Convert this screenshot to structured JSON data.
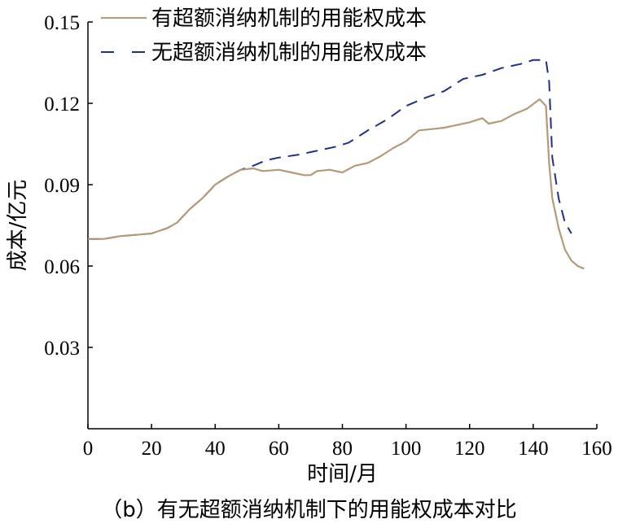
{
  "chart_data": {
    "type": "line",
    "title": "",
    "xlabel": "时间/月",
    "ylabel": "成本/亿元",
    "xlim": [
      0,
      160
    ],
    "ylim": [
      0,
      0.15
    ],
    "xticks": [
      0,
      20,
      40,
      60,
      80,
      100,
      120,
      140,
      160
    ],
    "xtick_labels": [
      "0",
      "20",
      "40",
      "60",
      "80",
      "100",
      "120",
      "140",
      "160"
    ],
    "yticks": [
      0.03,
      0.06,
      0.09,
      0.12,
      0.15
    ],
    "ytick_labels": [
      "0.03",
      "0.06",
      "0.09",
      "0.12",
      "0.15"
    ],
    "grid": false,
    "legend": "top-left",
    "series": [
      {
        "name": "有超额消纳机制的用能权成本",
        "color": "#b59a78",
        "style": "solid",
        "x": [
          0,
          5,
          10,
          15,
          20,
          25,
          28,
          32,
          36,
          40,
          44,
          48,
          52,
          55,
          60,
          64,
          68,
          70,
          72,
          76,
          80,
          84,
          88,
          92,
          96,
          100,
          104,
          108,
          112,
          116,
          120,
          124,
          126,
          130,
          134,
          138,
          142,
          144,
          145,
          146,
          148,
          150,
          152,
          154,
          156
        ],
        "y": [
          0.07,
          0.07,
          0.071,
          0.0715,
          0.072,
          0.074,
          0.076,
          0.081,
          0.085,
          0.09,
          0.093,
          0.0955,
          0.096,
          0.095,
          0.0955,
          0.0945,
          0.0935,
          0.0935,
          0.095,
          0.0955,
          0.0945,
          0.097,
          0.098,
          0.1005,
          0.1035,
          0.106,
          0.11,
          0.1105,
          0.111,
          0.112,
          0.113,
          0.1145,
          0.1125,
          0.1135,
          0.116,
          0.118,
          0.1215,
          0.119,
          0.098,
          0.085,
          0.074,
          0.066,
          0.062,
          0.06,
          0.059
        ]
      },
      {
        "name": "无超额消纳机制的用能权成本",
        "color": "#1f2f8a",
        "style": "dashed",
        "x": [
          0,
          5,
          10,
          15,
          20,
          25,
          28,
          32,
          36,
          40,
          44,
          48,
          52,
          56,
          60,
          66,
          72,
          78,
          82,
          88,
          94,
          100,
          106,
          112,
          118,
          124,
          130,
          136,
          140,
          144,
          145,
          146,
          148,
          150,
          152
        ],
        "y": [
          0.07,
          0.07,
          0.071,
          0.0715,
          0.072,
          0.074,
          0.076,
          0.081,
          0.085,
          0.09,
          0.093,
          0.0955,
          0.097,
          0.099,
          0.1,
          0.101,
          0.1025,
          0.104,
          0.1055,
          0.11,
          0.114,
          0.119,
          0.122,
          0.1245,
          0.129,
          0.1305,
          0.133,
          0.1345,
          0.136,
          0.136,
          0.128,
          0.1,
          0.085,
          0.076,
          0.072
        ]
      }
    ]
  },
  "caption": "（b）有无超额消纳机制下的用能权成本对比"
}
